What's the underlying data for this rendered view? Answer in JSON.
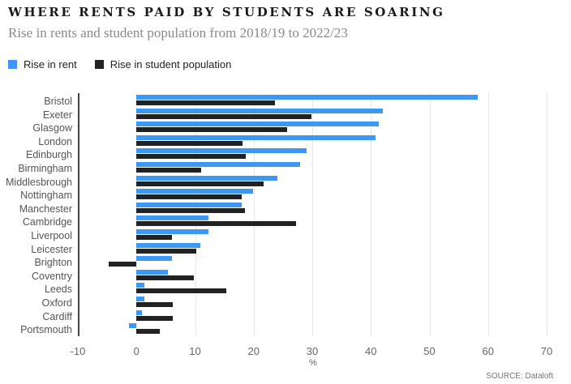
{
  "header": {
    "title": "WHERE RENTS PAID BY STUDENTS ARE SOARING",
    "subtitle": "Rise in rents and student population from 2018/19 to 2022/23"
  },
  "legend": [
    {
      "label": "Rise in rent",
      "color": "#3d97f5"
    },
    {
      "label": "Rise in student population",
      "color": "#222222"
    }
  ],
  "footer": {
    "unit": "%",
    "source": "SOURCE: Dataloft"
  },
  "chart_data": {
    "type": "bar",
    "orientation": "horizontal",
    "title": "WHERE RENTS PAID BY STUDENTS ARE SOARING",
    "subtitle": "Rise in rents and student population from 2018/19 to 2022/23",
    "xlabel": "%",
    "ylabel": "",
    "xlim": [
      -10,
      70
    ],
    "xticks": [
      -10,
      0,
      10,
      20,
      30,
      40,
      50,
      60,
      70
    ],
    "grid": true,
    "legend_position": "top-left",
    "categories": [
      "Bristol",
      "Exeter",
      "Glasgow",
      "London",
      "Edinburgh",
      "Birmingham",
      "Middlesbrough",
      "Nottingham",
      "Manchester",
      "Cambridge",
      "Liverpool",
      "Leicester",
      "Brighton",
      "Coventry",
      "Leeds",
      "Oxford",
      "Cardiff",
      "Portsmouth"
    ],
    "series": [
      {
        "name": "Rise in rent",
        "color": "#3d97f5",
        "values": [
          58.3,
          42.1,
          41.3,
          40.8,
          29.0,
          27.9,
          24.0,
          19.9,
          17.9,
          12.3,
          12.3,
          10.9,
          6.1,
          5.4,
          1.3,
          1.3,
          0.9,
          -1.3
        ]
      },
      {
        "name": "Rise in student population",
        "color": "#222222",
        "values": [
          23.6,
          29.8,
          25.7,
          18.1,
          18.6,
          11.0,
          21.7,
          17.9,
          18.5,
          27.3,
          6.1,
          10.2,
          -4.7,
          9.8,
          15.3,
          6.2,
          6.2,
          4.0
        ]
      }
    ],
    "source": "SOURCE: Dataloft"
  }
}
